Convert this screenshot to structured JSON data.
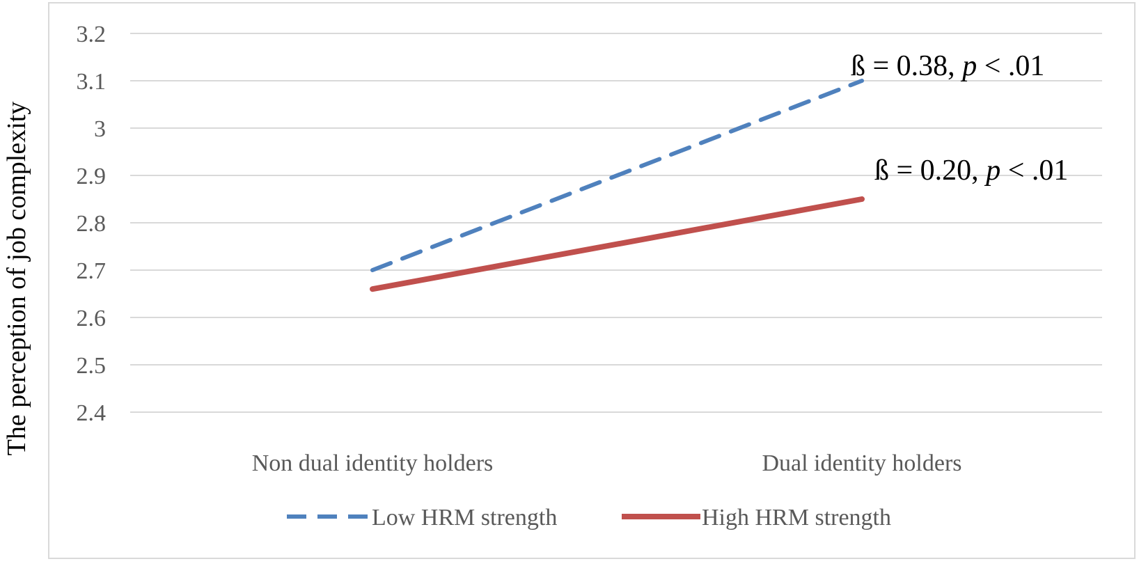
{
  "chart_data": {
    "type": "line",
    "title": "",
    "ylabel": "The perception of job complexity",
    "xlabel": "",
    "categories": [
      "Non dual identity holders",
      "Dual identity holders"
    ],
    "ylim": [
      2.4,
      3.2
    ],
    "yticks": [
      2.4,
      2.5,
      2.6,
      2.7,
      2.8,
      2.9,
      3,
      3.1,
      3.2
    ],
    "ytick_labels": [
      "2.4",
      "2.5",
      "2.6",
      "2.7",
      "2.8",
      "2.9",
      "3",
      "3.1",
      "3.2"
    ],
    "grid": true,
    "legend_position": "bottom",
    "series": [
      {
        "name": "Low HRM strength",
        "values": [
          2.7,
          3.1
        ],
        "color": "#4f81bd",
        "style": "dashed"
      },
      {
        "name": "High HRM strength",
        "values": [
          2.66,
          2.85
        ],
        "color": "#c0504d",
        "style": "solid"
      }
    ],
    "annotations": [
      {
        "beta": "ß = 0.38, ",
        "p": "p",
        "rest": " < .01"
      },
      {
        "beta": "ß = 0.20, ",
        "p": "p",
        "rest": " < .01"
      }
    ]
  }
}
